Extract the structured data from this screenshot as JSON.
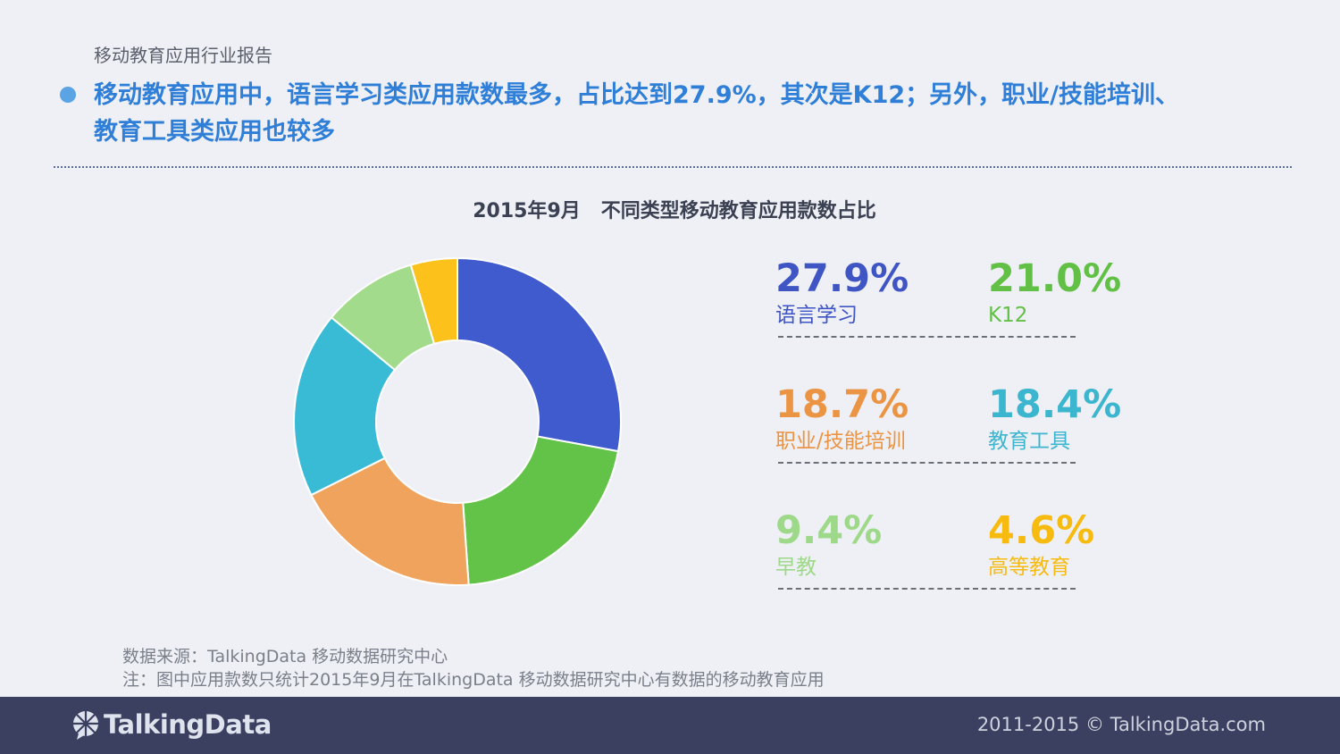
{
  "header": {
    "report_title": "移动教育应用行业报告",
    "headline_line1": "移动教育应用中，语言学习类应用款数最多，占比达到27.9%，其次是K12；另外，职业/技能培训、",
    "headline_line2": "教育工具类应用也较多"
  },
  "chart_data": {
    "type": "pie",
    "title": "2015年9月   不同类型移动教育应用款数占比",
    "donut": true,
    "categories": [
      "语言学习",
      "K12",
      "职业/技能培训",
      "教育工具",
      "早教",
      "高等教育"
    ],
    "values": [
      27.9,
      21.0,
      18.7,
      18.4,
      9.4,
      4.6
    ],
    "value_labels": [
      "27.9%",
      "21.0%",
      "18.7%",
      "18.4%",
      "9.4%",
      "4.6%"
    ],
    "colors": [
      "#405bce",
      "#63c348",
      "#f0a35d",
      "#39bbd6",
      "#a3db8c",
      "#fcc11b"
    ],
    "label_colors": [
      "#3f55c4",
      "#62c046",
      "#eb9444",
      "#3cb5cf",
      "#9ed889",
      "#f7bb10"
    ],
    "legend_placement": "right"
  },
  "footer": {
    "source_line1": "数据来源：TalkingData 移动数据研究中心",
    "source_line2": "注：图中应用款数只统计2015年9月在TalkingData  移动数据研究中心有数据的移动教育应用",
    "logo_text": "TalkingData",
    "copyright": "2011-2015 © TalkingData.com"
  }
}
